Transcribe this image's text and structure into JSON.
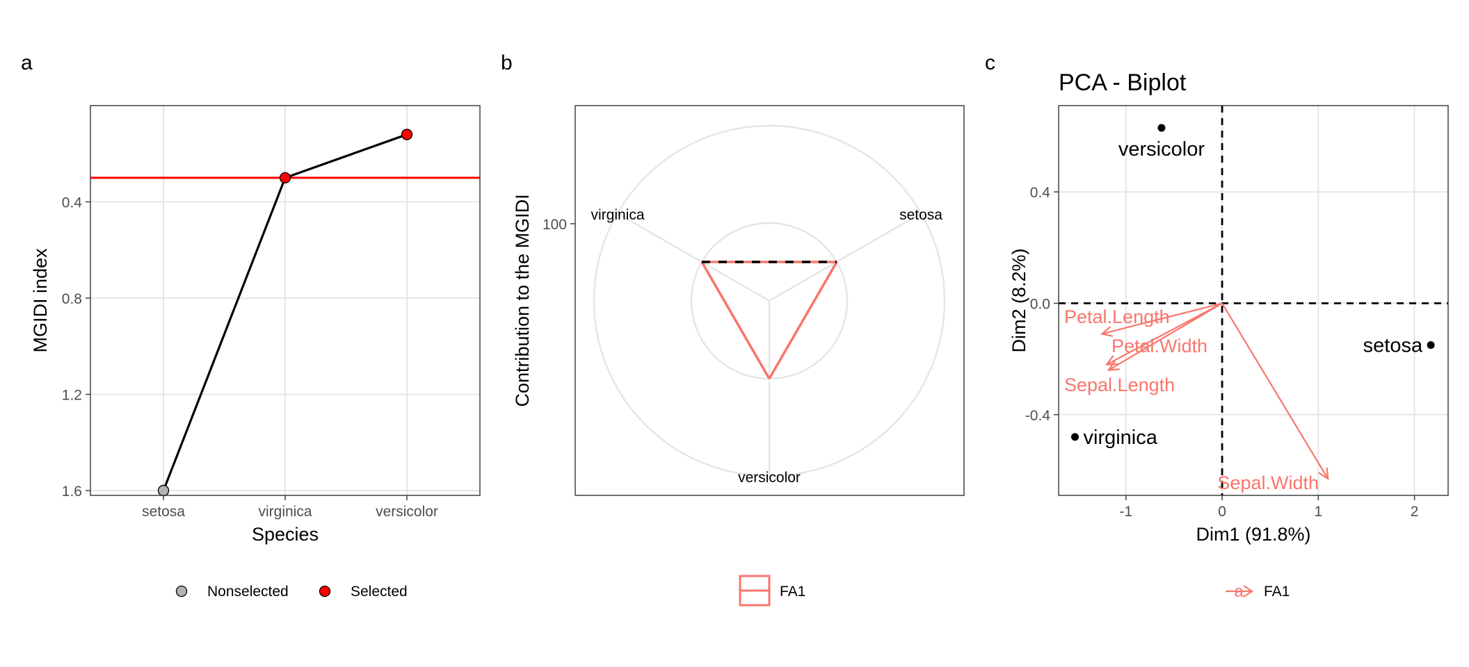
{
  "panels": {
    "a": {
      "tag": "a"
    },
    "b": {
      "tag": "b"
    },
    "c": {
      "tag": "c"
    }
  },
  "chart_data": [
    {
      "panel": "a",
      "type": "line",
      "title": "",
      "xlabel": "Species",
      "ylabel": "MGIDI index",
      "y_reversed": true,
      "ylim": [
        1.62,
        0.0
      ],
      "yticks": [
        0.4,
        0.8,
        1.2,
        1.6
      ],
      "ytick_labels": [
        "0.4",
        "0.8",
        "1.2",
        "1.6"
      ],
      "categories": [
        "setosa",
        "virginica",
        "versicolor"
      ],
      "values": [
        1.6,
        0.3,
        0.12
      ],
      "point_status": [
        "Nonselected",
        "Selected",
        "Selected"
      ],
      "cutpoint": 0.3,
      "grid": true,
      "legend_position": "bottom",
      "legend": [
        {
          "label": "Nonselected",
          "color": "#b3b3b3"
        },
        {
          "label": "Selected",
          "color": "#ff0000"
        }
      ],
      "colors": {
        "line": "#000000",
        "cutpoint": "#ff0000"
      }
    },
    {
      "panel": "b",
      "type": "radar",
      "title": "",
      "ylabel": "Contribution to the MGIDI",
      "radial_tick_labels": [
        "100"
      ],
      "axes": [
        "setosa",
        "versicolor",
        "virginica"
      ],
      "series": [
        {
          "name": "FA1",
          "values": [
            100,
            100,
            100
          ]
        }
      ],
      "grid": true,
      "legend_position": "bottom",
      "legend": [
        {
          "label": "FA1",
          "color": "#f8766d"
        }
      ],
      "colors": {
        "series": "#f8766d",
        "dashed_edge": "#000000"
      }
    },
    {
      "panel": "c",
      "type": "scatter",
      "title": "PCA - Biplot",
      "xlabel": "Dim1 (91.8%)",
      "ylabel": "Dim2 (8.2%)",
      "xlim": [
        -1.7,
        2.35
      ],
      "ylim": [
        -0.69,
        0.71
      ],
      "xticks": [
        -1,
        0,
        1,
        2
      ],
      "xtick_labels": [
        "-1",
        "0",
        "1",
        "2"
      ],
      "yticks": [
        -0.4,
        0.0,
        0.4
      ],
      "ytick_labels": [
        "-0.4",
        "0.0",
        "0.4"
      ],
      "points": [
        {
          "label": "versicolor",
          "x": -0.63,
          "y": 0.63
        },
        {
          "label": "setosa",
          "x": 2.17,
          "y": -0.15
        },
        {
          "label": "virginica",
          "x": -1.53,
          "y": -0.48
        }
      ],
      "vectors": [
        {
          "label": "Petal.Length",
          "x": -1.25,
          "y": -0.11
        },
        {
          "label": "Petal.Width",
          "x": -1.2,
          "y": -0.22
        },
        {
          "label": "Sepal.Length",
          "x": -1.18,
          "y": -0.24
        },
        {
          "label": "Sepal.Width",
          "x": 1.1,
          "y": -0.63
        }
      ],
      "grid": true,
      "legend_position": "bottom",
      "legend": [
        {
          "label": "FA1",
          "color": "#f8766d",
          "key_glyph": "a"
        }
      ],
      "colors": {
        "points": "#000000",
        "vectors": "#f8766d",
        "zero_lines": "#000000"
      }
    }
  ]
}
